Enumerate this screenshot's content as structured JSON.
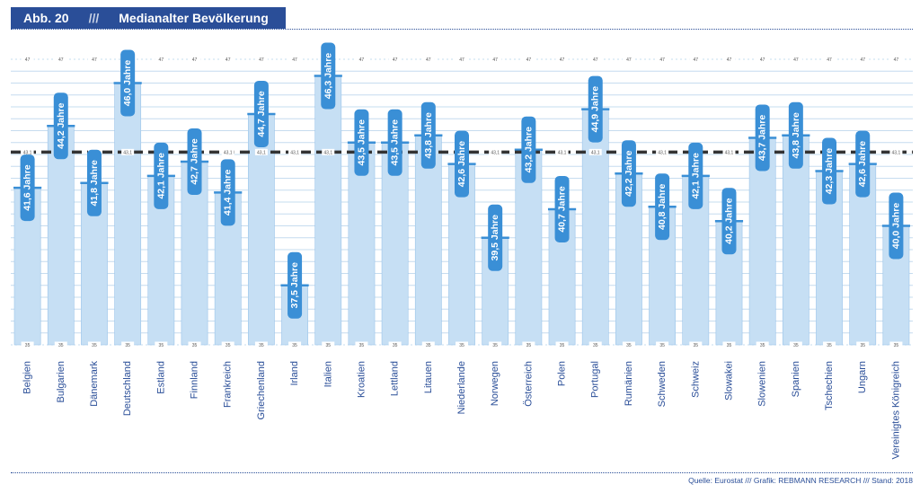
{
  "header": {
    "label": "Abb. 20",
    "separator": "///",
    "title": "Medianalter Bevölkerung"
  },
  "source": "Quelle: Eurostat /// Grafik: REBMANN RESEARCH /// Stand: 2018",
  "colors": {
    "header_bg": "#2a4e98",
    "bar_fill": "#c6dff4",
    "bar_edge": "#9cc5ea",
    "marker": "#3a8fd6",
    "pill": "#3a8fd6",
    "average_line": "#333333",
    "grid": "#c6dcef",
    "label_text": "#2a4e98"
  },
  "chart_data": {
    "type": "bar",
    "title": "Medianalter Bevölkerung",
    "unit": "Jahre",
    "ylim": [
      35,
      47
    ],
    "grid": true,
    "tick_labels": {
      "top": "47",
      "average": "43,1",
      "bottom": "35"
    },
    "average": 43.1,
    "categories": [
      "Belgien",
      "Bulgarien",
      "Dänemark",
      "Deutschland",
      "Estland",
      "Finnland",
      "Frankreich",
      "Griechenland",
      "Irland",
      "Italien",
      "Kroatien",
      "Lettland",
      "Litauen",
      "Niederlande",
      "Norwegen",
      "Österreich",
      "Polen",
      "Portugal",
      "Rumänien",
      "Schweden",
      "Schweiz",
      "Slowakei",
      "Slowenien",
      "Spanien",
      "Tschechien",
      "Ungarn",
      "Vereinigtes Königreich"
    ],
    "values": [
      41.6,
      44.2,
      41.8,
      46.0,
      42.1,
      42.7,
      41.4,
      44.7,
      37.5,
      46.3,
      43.5,
      43.5,
      43.8,
      42.6,
      39.5,
      43.2,
      40.7,
      44.9,
      42.2,
      40.8,
      42.1,
      40.2,
      43.7,
      43.8,
      42.3,
      42.6,
      40.0
    ],
    "value_labels": [
      "41,6 Jahre",
      "44,2 Jahre",
      "41,8 Jahre",
      "46,0 Jahre",
      "42,1 Jahre",
      "42,7 Jahre",
      "41,4 Jahre",
      "44,7 Jahre",
      "37,5 Jahre",
      "46,3 Jahre",
      "43,5 Jahre",
      "43,5 Jahre",
      "43,8 Jahre",
      "42,6 Jahre",
      "39,5 Jahre",
      "43,2 Jahre",
      "40,7 Jahre",
      "44,9 Jahre",
      "42,2 Jahre",
      "40,8 Jahre",
      "42,1 Jahre",
      "40,2 Jahre",
      "43,7 Jahre",
      "43,8 Jahre",
      "42,3 Jahre",
      "42,6 Jahre",
      "40,0 Jahre"
    ]
  }
}
